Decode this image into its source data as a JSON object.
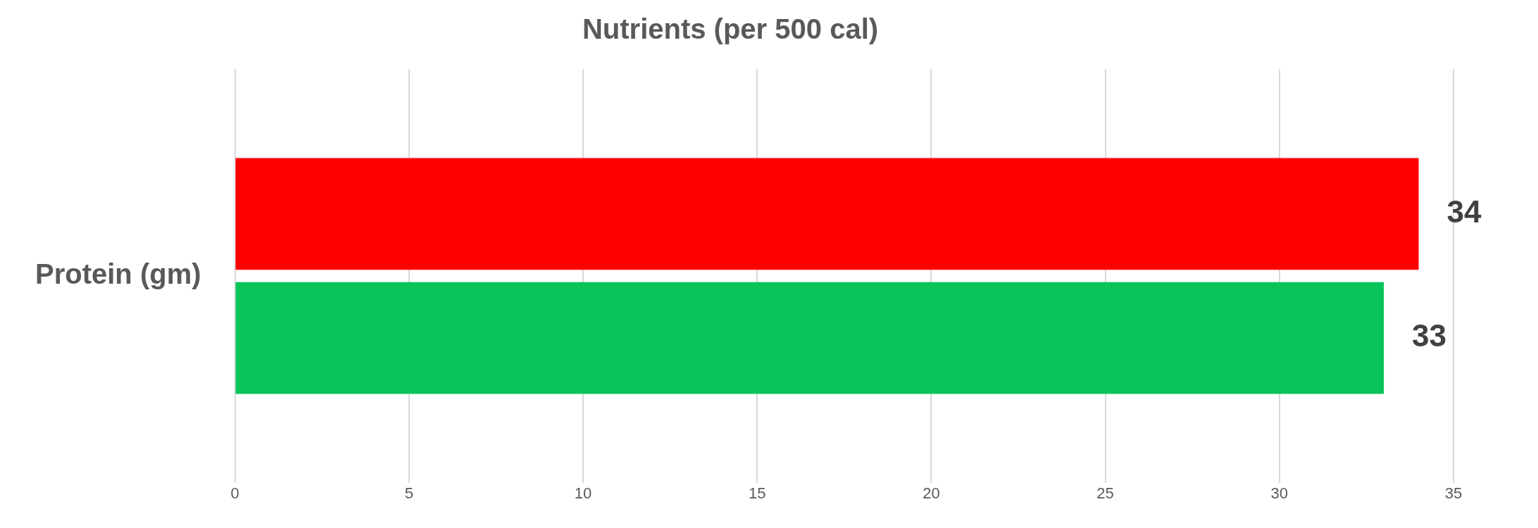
{
  "chart_data": {
    "type": "bar",
    "orientation": "horizontal",
    "title": "Nutrients (per 500 cal)",
    "categories": [
      "Protein (gm)"
    ],
    "series": [
      {
        "color": "#ff0000",
        "values": [
          34
        ]
      },
      {
        "color": "#08c45a",
        "values": [
          33
        ]
      }
    ],
    "xlim": [
      0,
      35
    ],
    "xticks": [
      0,
      5,
      10,
      15,
      20,
      25,
      30,
      35
    ],
    "grid": "x",
    "legend": false,
    "data_labels": true
  }
}
